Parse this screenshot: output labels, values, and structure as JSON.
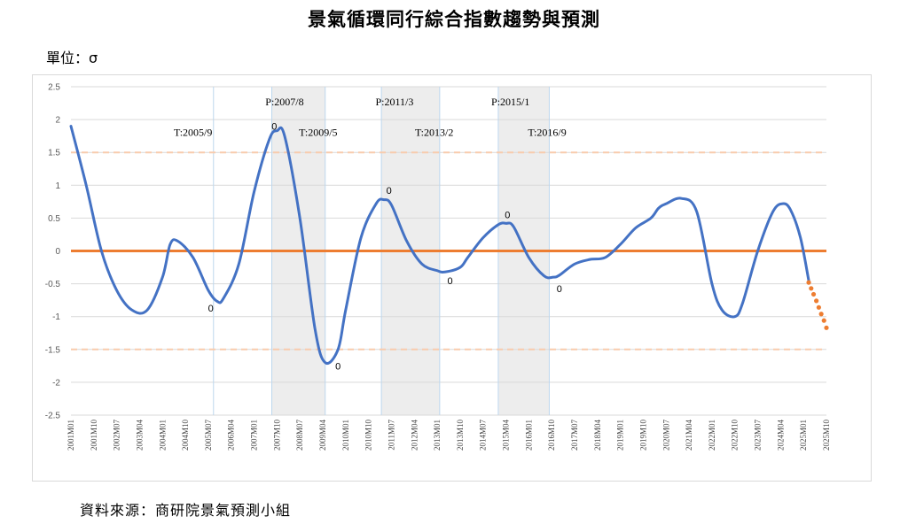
{
  "title": "景氣循環同行綜合指數趨勢與預測",
  "unit_label": "單位：σ",
  "source": "資料來源：商研院景氣預測小組",
  "chart_data": {
    "type": "line",
    "title": "景氣循環同行綜合指數趨勢與預測",
    "ylabel": "單位：σ",
    "ylim": [
      -2.5,
      2.5
    ],
    "yticks": [
      "2.5",
      "2",
      "1.5",
      "1",
      "0.5",
      "0",
      "-0.5",
      "-1",
      "-1.5",
      "-2",
      "-2.5"
    ],
    "xlim": [
      2001.0,
      2025.75
    ],
    "xticks": [
      "2001M01",
      "2001M10",
      "2002M07",
      "2003M04",
      "2004M01",
      "2004M10",
      "2005M07",
      "2006M04",
      "2007M01",
      "2007M10",
      "2008M07",
      "2009M04",
      "2010M01",
      "2010M10",
      "2011M07",
      "2012M04",
      "2013M01",
      "2013M10",
      "2014M07",
      "2015M04",
      "2016M01",
      "2016M10",
      "2017M07",
      "2018M04",
      "2019M01",
      "2019M10",
      "2020M07",
      "2021M04",
      "2022M01",
      "2022M10",
      "2023M07",
      "2024M04",
      "2025M01",
      "2025M10"
    ],
    "reference_lines": [
      {
        "y": 0,
        "style": "solid",
        "color": "#ed7d31"
      },
      {
        "y": 1.5,
        "style": "dashed",
        "color": "#f8cbad"
      },
      {
        "y": -1.5,
        "style": "dashed",
        "color": "#f8cbad"
      }
    ],
    "shaded_periods": [
      {
        "from": "P:2007/8",
        "to": "T:2009/5",
        "x0": 2007.58,
        "x1": 2009.33
      },
      {
        "from": "P:2011/3",
        "to": "T:2013/2",
        "x0": 2011.17,
        "x1": 2013.08
      },
      {
        "from": "P:2015/1",
        "to": "T:2016/9",
        "x0": 2015.0,
        "x1": 2016.67
      }
    ],
    "vline_x": [
      2005.67,
      2007.58,
      2009.33,
      2011.17,
      2013.08,
      2015.0,
      2016.67
    ],
    "turning_point_labels": [
      {
        "text": "T:2005/9",
        "x": 2005.0,
        "y": 1.75
      },
      {
        "text": "P:2007/8",
        "x": 2008.0,
        "y": 2.22
      },
      {
        "text": "T:2009/5",
        "x": 2009.1,
        "y": 1.75
      },
      {
        "text": "P:2011/3",
        "x": 2011.6,
        "y": 2.22
      },
      {
        "text": "T:2013/2",
        "x": 2012.9,
        "y": 1.75
      },
      {
        "text": "P:2015/1",
        "x": 2015.4,
        "y": 2.22
      },
      {
        "text": "T:2016/9",
        "x": 2016.6,
        "y": 1.75
      }
    ],
    "point_markers": [
      {
        "text": "0",
        "x": 2005.58,
        "y": -0.87
      },
      {
        "text": "0",
        "x": 2007.66,
        "y": 1.9
      },
      {
        "text": "0",
        "x": 2009.75,
        "y": -1.75
      },
      {
        "text": "0",
        "x": 2011.42,
        "y": 0.92
      },
      {
        "text": "0",
        "x": 2013.42,
        "y": -0.45
      },
      {
        "text": "0",
        "x": 2015.3,
        "y": 0.55
      },
      {
        "text": "0",
        "x": 2017.0,
        "y": -0.57
      }
    ],
    "series": [
      {
        "style": "solid",
        "color": "#4472c4",
        "x": [
          2001.0,
          2001.5,
          2002.0,
          2002.5,
          2003.0,
          2003.5,
          2004.0,
          2004.25,
          2004.5,
          2005.0,
          2005.5,
          2005.8,
          2006.0,
          2006.5,
          2007.0,
          2007.5,
          2007.75,
          2008.0,
          2008.5,
          2009.0,
          2009.33,
          2009.75,
          2010.0,
          2010.5,
          2011.0,
          2011.25,
          2011.5,
          2012.0,
          2012.5,
          2013.0,
          2013.25,
          2013.75,
          2014.0,
          2014.5,
          2015.0,
          2015.25,
          2015.5,
          2016.0,
          2016.5,
          2016.8,
          2017.0,
          2017.5,
          2018.0,
          2018.5,
          2019.0,
          2019.5,
          2020.0,
          2020.25,
          2020.5,
          2021.0,
          2021.5,
          2022.0,
          2022.33,
          2022.75,
          2023.0,
          2023.5,
          2024.0,
          2024.33,
          2024.58,
          2024.9,
          2025.17
        ],
        "y": [
          1.9,
          1.0,
          0.0,
          -0.6,
          -0.9,
          -0.9,
          -0.4,
          0.1,
          0.15,
          -0.1,
          -0.6,
          -0.77,
          -0.72,
          -0.2,
          0.9,
          1.7,
          1.83,
          1.75,
          0.5,
          -1.2,
          -1.7,
          -1.5,
          -0.9,
          0.2,
          0.72,
          0.78,
          0.7,
          0.15,
          -0.2,
          -0.3,
          -0.32,
          -0.25,
          -0.1,
          0.2,
          0.4,
          0.42,
          0.37,
          -0.1,
          -0.38,
          -0.4,
          -0.37,
          -0.2,
          -0.13,
          -0.1,
          0.1,
          0.35,
          0.5,
          0.65,
          0.72,
          0.8,
          0.6,
          -0.5,
          -0.9,
          -1.0,
          -0.8,
          0.0,
          0.6,
          0.72,
          0.62,
          0.2,
          -0.45
        ]
      },
      {
        "style": "dotted",
        "color": "#ed7d31",
        "x": [
          2025.17,
          2025.25,
          2025.33,
          2025.42,
          2025.5,
          2025.58,
          2025.67,
          2025.75
        ],
        "y": [
          -0.48,
          -0.57,
          -0.66,
          -0.76,
          -0.86,
          -0.96,
          -1.06,
          -1.17
        ]
      }
    ]
  }
}
